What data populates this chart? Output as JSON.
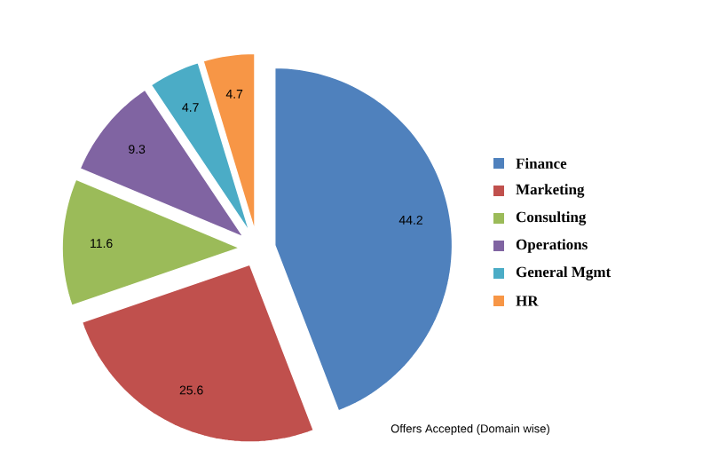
{
  "chart_data": {
    "type": "pie",
    "title": "Offers Accepted (Domain wise)",
    "categories": [
      "Finance",
      "Marketing",
      "Consulting",
      "Operations",
      "General Mgmt",
      "HR"
    ],
    "values": [
      44.2,
      25.6,
      11.6,
      9.3,
      4.7,
      4.7
    ],
    "colors": [
      "#4f81bd",
      "#c0504d",
      "#9bbb59",
      "#8064a2",
      "#4bacc6",
      "#f79646"
    ],
    "data_labels": true,
    "legend": "right"
  }
}
